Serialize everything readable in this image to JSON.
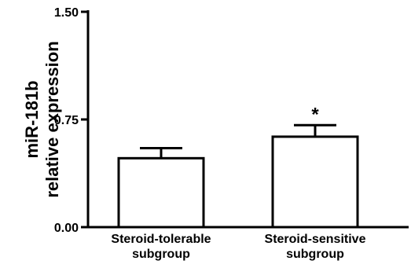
{
  "chart_data": {
    "type": "bar",
    "categories": [
      [
        "Steroid-tolerable",
        "subgroup"
      ],
      [
        "Steroid-sensitive",
        "subgroup"
      ]
    ],
    "values": [
      0.48,
      0.63
    ],
    "error": [
      0.07,
      0.08
    ],
    "annotations": [
      "",
      "*"
    ],
    "ylabel": [
      "miR-181b",
      "relative expression"
    ],
    "ylim": [
      0,
      1.5
    ],
    "yticks": [
      "0.00",
      "0.75",
      "1.50"
    ],
    "bar_fill": "#ffffff",
    "bar_stroke": "#000000",
    "grid": false
  }
}
